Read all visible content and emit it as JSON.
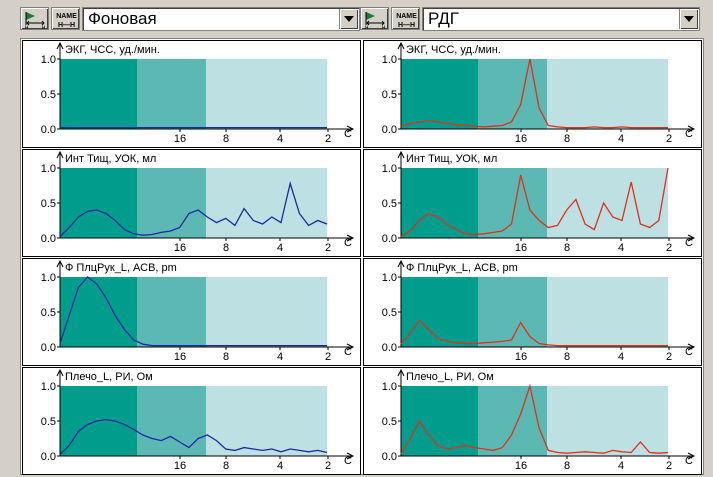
{
  "colors": {
    "band_dark": "#009c8c",
    "band_mid": "#5cb8b2",
    "band_light": "#bde0e2",
    "series_left": "#1a2ba0",
    "series_right": "#e0301c"
  },
  "toolbars": [
    {
      "swap_icon": "swap-arrows-icon",
      "name_icon": "name-sort-icon",
      "name_icon_text": [
        "NAME",
        "H—H"
      ],
      "selection": "Фоновая",
      "arrow_icon": "chevron-down-icon"
    },
    {
      "swap_icon": "swap-arrows-icon",
      "name_icon": "name-sort-icon",
      "name_icon_text": [
        "NAME",
        "H—H"
      ],
      "selection": "РДГ",
      "arrow_icon": "chevron-down-icon"
    }
  ],
  "panels": [
    {
      "title": "ЭКГ, ЧСС, уд./мин."
    },
    {
      "title": "Инт Тищ, УОК, мл"
    },
    {
      "title": "Ф ПлцРук_L, АСВ, pm"
    },
    {
      "title": "Плечо_L, РИ, Ом"
    }
  ],
  "axes": {
    "y_ticks": [
      "1.0",
      "0.5",
      "0.0"
    ],
    "x_ticks": [
      "16",
      "8",
      "4",
      "2"
    ],
    "x_unit": "C"
  },
  "chart_data": [
    {
      "type": "line",
      "panel": "left-1",
      "title": "ЭКГ, ЧСС, уд./мин.",
      "xlabel": "C",
      "x_ticks": [
        "16",
        "8",
        "4",
        "2"
      ],
      "y_ticks": [
        "1.0",
        "0.5",
        "0.0"
      ],
      "ylim": [
        0,
        1.0
      ],
      "series": [
        {
          "values": [
            0.02,
            0.02,
            0.02,
            0.02,
            0.02,
            0.02,
            0.02,
            0.02,
            0.02,
            0.02,
            0.02,
            0.02,
            0.02,
            0.02,
            0.02,
            0.02,
            0.02,
            0.02,
            0.02,
            0.02,
            0.02,
            0.02,
            0.02,
            0.02,
            0.02,
            0.02,
            0.02,
            0.02,
            0.02,
            0.02
          ]
        }
      ]
    },
    {
      "type": "line",
      "panel": "right-1",
      "title": "ЭКГ, ЧСС, уд./мин.",
      "xlabel": "C",
      "x_ticks": [
        "16",
        "8",
        "4",
        "2"
      ],
      "y_ticks": [
        "1.0",
        "0.5",
        "0.0"
      ],
      "ylim": [
        0,
        1.0
      ],
      "series": [
        {
          "values": [
            0.04,
            0.08,
            0.1,
            0.12,
            0.1,
            0.08,
            0.06,
            0.05,
            0.04,
            0.03,
            0.04,
            0.05,
            0.1,
            0.35,
            1.0,
            0.3,
            0.05,
            0.03,
            0.02,
            0.02,
            0.02,
            0.03,
            0.02,
            0.02,
            0.03,
            0.02,
            0.02,
            0.02,
            0.02,
            0.02
          ]
        }
      ]
    },
    {
      "type": "line",
      "panel": "left-2",
      "title": "Инт Тищ, УОК, мл",
      "xlabel": "C",
      "x_ticks": [
        "16",
        "8",
        "4",
        "2"
      ],
      "y_ticks": [
        "1.0",
        "0.5",
        "0.0"
      ],
      "ylim": [
        0,
        1.0
      ],
      "series": [
        {
          "values": [
            0.02,
            0.15,
            0.3,
            0.38,
            0.4,
            0.35,
            0.25,
            0.12,
            0.06,
            0.04,
            0.05,
            0.08,
            0.1,
            0.15,
            0.35,
            0.4,
            0.3,
            0.22,
            0.28,
            0.18,
            0.42,
            0.25,
            0.2,
            0.3,
            0.22,
            0.78,
            0.35,
            0.18,
            0.25,
            0.2
          ]
        }
      ]
    },
    {
      "type": "line",
      "panel": "right-2",
      "title": "Инт Тищ, УОК, мл",
      "xlabel": "C",
      "x_ticks": [
        "16",
        "8",
        "4",
        "2"
      ],
      "y_ticks": [
        "1.0",
        "0.5",
        "0.0"
      ],
      "ylim": [
        0,
        1.0
      ],
      "series": [
        {
          "values": [
            0.02,
            0.1,
            0.25,
            0.35,
            0.3,
            0.2,
            0.12,
            0.06,
            0.05,
            0.06,
            0.08,
            0.1,
            0.2,
            0.9,
            0.4,
            0.25,
            0.15,
            0.18,
            0.4,
            0.55,
            0.2,
            0.12,
            0.5,
            0.3,
            0.25,
            0.8,
            0.2,
            0.15,
            0.25,
            1.0
          ]
        }
      ]
    },
    {
      "type": "line",
      "panel": "left-3",
      "title": "Ф ПлцРук_L, АСВ, pm",
      "xlabel": "C",
      "x_ticks": [
        "16",
        "8",
        "4",
        "2"
      ],
      "y_ticks": [
        "1.0",
        "0.5",
        "0.0"
      ],
      "ylim": [
        0,
        1.0
      ],
      "series": [
        {
          "values": [
            0.05,
            0.45,
            0.85,
            1.0,
            0.9,
            0.7,
            0.45,
            0.25,
            0.1,
            0.04,
            0.02,
            0.02,
            0.02,
            0.02,
            0.02,
            0.02,
            0.02,
            0.02,
            0.02,
            0.02,
            0.02,
            0.02,
            0.02,
            0.02,
            0.02,
            0.02,
            0.02,
            0.02,
            0.02,
            0.02
          ]
        }
      ]
    },
    {
      "type": "line",
      "panel": "right-3",
      "title": "Ф ПлцРук_L, АСВ, pm",
      "xlabel": "C",
      "x_ticks": [
        "16",
        "8",
        "4",
        "2"
      ],
      "y_ticks": [
        "1.0",
        "0.5",
        "0.0"
      ],
      "ylim": [
        0,
        1.0
      ],
      "series": [
        {
          "values": [
            0.04,
            0.2,
            0.38,
            0.25,
            0.12,
            0.08,
            0.06,
            0.05,
            0.05,
            0.06,
            0.07,
            0.08,
            0.1,
            0.35,
            0.15,
            0.05,
            0.03,
            0.02,
            0.02,
            0.02,
            0.02,
            0.02,
            0.02,
            0.02,
            0.02,
            0.02,
            0.02,
            0.02,
            0.02,
            0.02
          ]
        }
      ]
    },
    {
      "type": "line",
      "panel": "left-4",
      "title": "Плечо_L, РИ, Ом",
      "xlabel": "C",
      "x_ticks": [
        "16",
        "8",
        "4",
        "2"
      ],
      "y_ticks": [
        "1.0",
        "0.5",
        "0.0"
      ],
      "ylim": [
        0,
        1.0
      ],
      "series": [
        {
          "values": [
            0.02,
            0.15,
            0.35,
            0.45,
            0.5,
            0.52,
            0.5,
            0.45,
            0.38,
            0.3,
            0.25,
            0.22,
            0.28,
            0.2,
            0.12,
            0.25,
            0.3,
            0.22,
            0.1,
            0.08,
            0.12,
            0.1,
            0.08,
            0.1,
            0.06,
            0.1,
            0.08,
            0.06,
            0.08,
            0.05
          ]
        }
      ]
    },
    {
      "type": "line",
      "panel": "right-4",
      "title": "Плечо_L, РИ, Ом",
      "xlabel": "C",
      "x_ticks": [
        "16",
        "8",
        "4",
        "2"
      ],
      "y_ticks": [
        "1.0",
        "0.5",
        "0.0"
      ],
      "ylim": [
        0,
        1.0
      ],
      "series": [
        {
          "values": [
            0.03,
            0.25,
            0.5,
            0.3,
            0.15,
            0.1,
            0.12,
            0.15,
            0.12,
            0.1,
            0.08,
            0.12,
            0.3,
            0.6,
            1.0,
            0.4,
            0.08,
            0.05,
            0.04,
            0.05,
            0.06,
            0.05,
            0.04,
            0.08,
            0.06,
            0.05,
            0.2,
            0.05,
            0.04,
            0.05
          ]
        }
      ]
    }
  ]
}
